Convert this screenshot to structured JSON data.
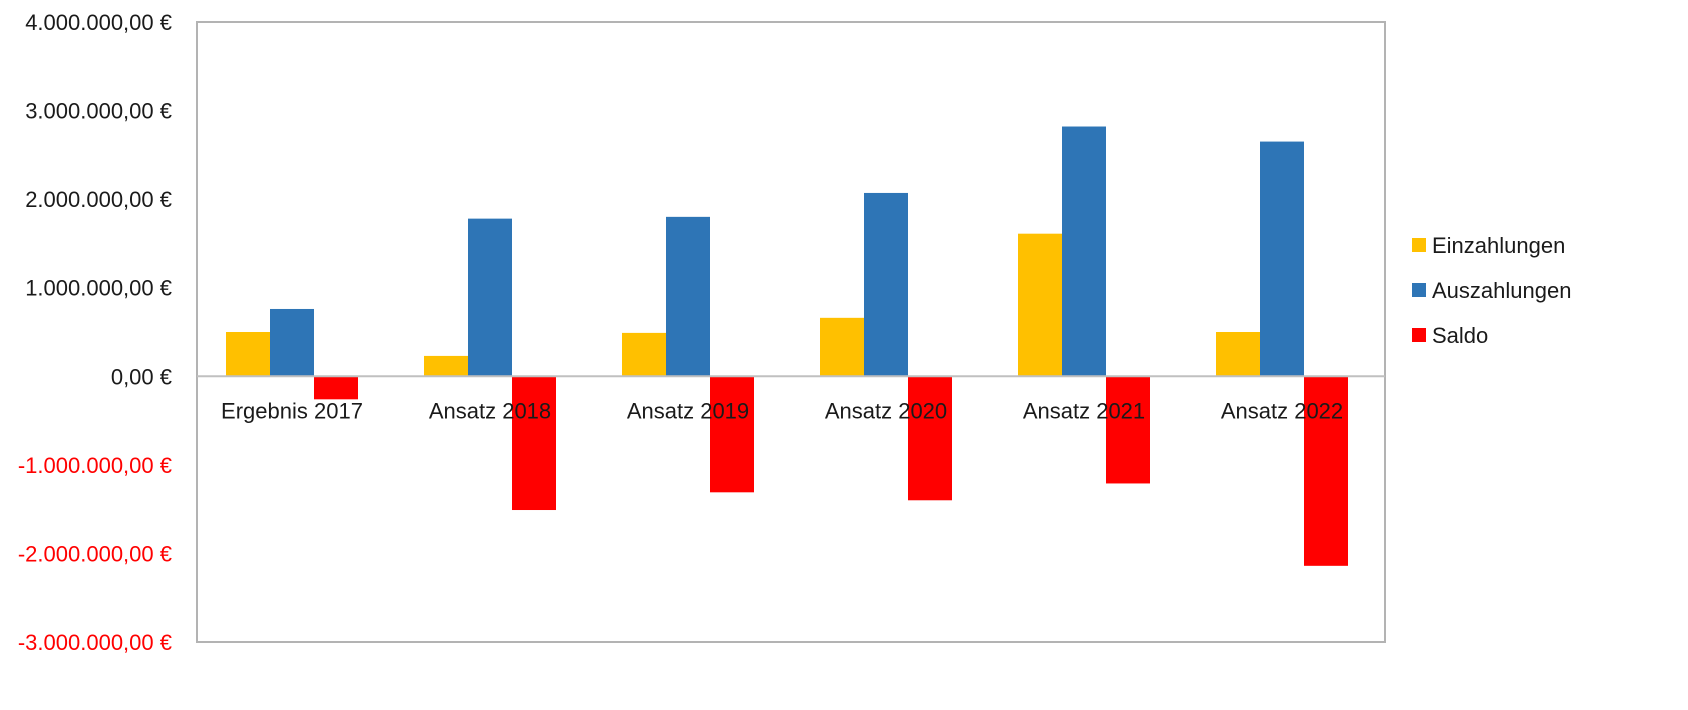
{
  "chart_data": {
    "type": "bar",
    "title": "",
    "xlabel": "",
    "ylabel": "",
    "categories": [
      "Ergebnis 2017",
      "Ansatz 2018",
      "Ansatz 2019",
      "Ansatz 2020",
      "Ansatz 2021",
      "Ansatz 2022"
    ],
    "series": [
      {
        "name": "Einzahlungen",
        "color": "#FFC000",
        "values": [
          500000,
          230000,
          490000,
          660000,
          1610000,
          500000
        ]
      },
      {
        "name": "Auszahlungen",
        "color": "#2E75B6",
        "values": [
          760000,
          1780000,
          1800000,
          2070000,
          2820000,
          2650000
        ]
      },
      {
        "name": "Saldo",
        "color": "#FF0000",
        "values": [
          -260000,
          -1510000,
          -1310000,
          -1400000,
          -1210000,
          -2140000
        ]
      }
    ],
    "ylim": [
      -3000000,
      4000000
    ],
    "yticks": [
      {
        "value": 4000000,
        "label": "4.000.000,00 €"
      },
      {
        "value": 3000000,
        "label": "3.000.000,00 €"
      },
      {
        "value": 2000000,
        "label": "2.000.000,00 €"
      },
      {
        "value": 1000000,
        "label": "1.000.000,00 €"
      },
      {
        "value": 0,
        "label": "0,00 €"
      },
      {
        "value": -1000000,
        "label": "-1.000.000,00 €"
      },
      {
        "value": -2000000,
        "label": "-2.000.000,00 €"
      },
      {
        "value": -3000000,
        "label": "-3.000.000,00 €"
      }
    ],
    "negative_tick_color": "#FF0000",
    "positive_tick_color": "#1a1a1a",
    "grid": false,
    "legend_position": "right"
  }
}
